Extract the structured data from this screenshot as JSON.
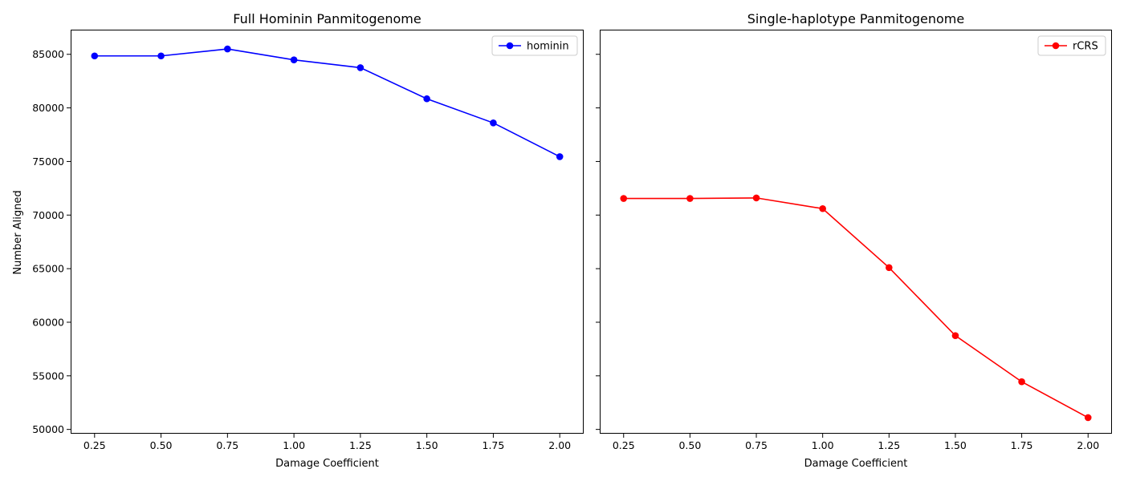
{
  "chart_data": [
    {
      "type": "line",
      "title": "Full Hominin Panmitogenome",
      "xlabel": "Damage Coefficient",
      "ylabel": "Number Aligned",
      "xlim": [
        0.16,
        2.09
      ],
      "ylim": [
        49600,
        87300
      ],
      "x_ticks": [
        "0.25",
        "0.50",
        "0.75",
        "1.00",
        "1.25",
        "1.50",
        "1.75",
        "2.00"
      ],
      "y_ticks": [
        "50000",
        "55000",
        "60000",
        "65000",
        "70000",
        "75000",
        "80000",
        "85000"
      ],
      "show_y_tick_labels": true,
      "grid": false,
      "legend_position": "top-right",
      "series": [
        {
          "name": "hominin",
          "color": "#0000ff",
          "marker": "circle",
          "x": [
            0.25,
            0.5,
            0.75,
            1.0,
            1.25,
            1.5,
            1.75,
            2.0
          ],
          "y": [
            84850,
            84850,
            85500,
            84480,
            83750,
            80850,
            78600,
            75450
          ]
        }
      ]
    },
    {
      "type": "line",
      "title": "Single-haplotype Panmitogenome",
      "xlabel": "Damage Coefficient",
      "ylabel": "",
      "xlim": [
        0.16,
        2.09
      ],
      "ylim": [
        49600,
        87300
      ],
      "x_ticks": [
        "0.25",
        "0.50",
        "0.75",
        "1.00",
        "1.25",
        "1.50",
        "1.75",
        "2.00"
      ],
      "y_ticks": [
        "50000",
        "55000",
        "60000",
        "65000",
        "70000",
        "75000",
        "80000",
        "85000"
      ],
      "show_y_tick_labels": false,
      "grid": false,
      "legend_position": "top-right",
      "series": [
        {
          "name": "rCRS",
          "color": "#ff0000",
          "marker": "circle",
          "x": [
            0.25,
            0.5,
            0.75,
            1.0,
            1.25,
            1.5,
            1.75,
            2.0
          ],
          "y": [
            71550,
            71550,
            71600,
            70600,
            65100,
            58750,
            54450,
            51100
          ]
        }
      ]
    }
  ]
}
